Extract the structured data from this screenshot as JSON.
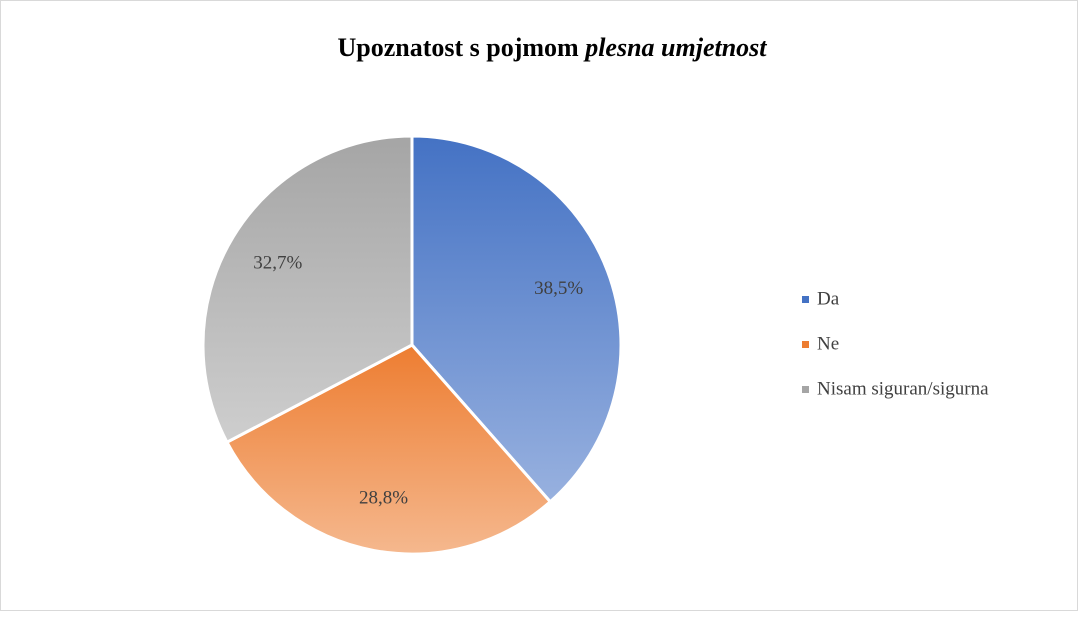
{
  "chart_data": {
    "type": "pie",
    "title": [
      "Upoznatost s pojmom",
      "plesna umjetnost"
    ],
    "categories": [
      "Da",
      "Ne",
      "Nisam siguran/sigurna"
    ],
    "values": [
      38.5,
      28.8,
      32.7
    ],
    "value_labels": [
      "38,5%",
      "28,8%",
      "32,7%"
    ],
    "colors": [
      "#4472c4",
      "#ed7d31",
      "#a5a5a5"
    ],
    "legend": "right"
  }
}
